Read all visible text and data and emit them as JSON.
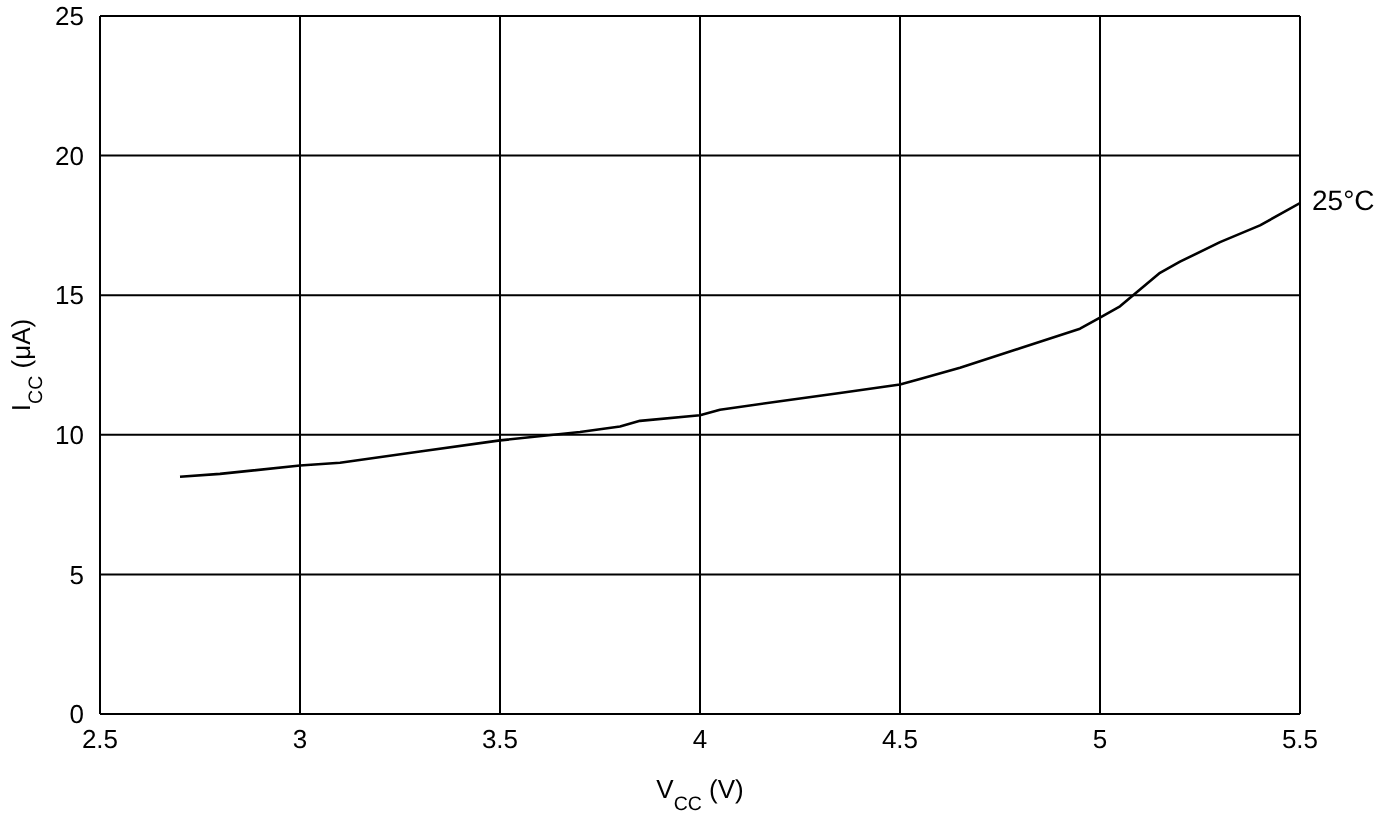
{
  "chart_data": {
    "type": "line",
    "xlabel": "V$_{CC}$ (V)",
    "ylabel": "I$_{CC}$ (μA)",
    "xlim": [
      2.5,
      5.5
    ],
    "xticks": [
      2.5,
      3,
      3.5,
      4,
      4.5,
      5,
      5.5
    ],
    "ylim": [
      0,
      25
    ],
    "yticks": [
      0,
      5,
      10,
      15,
      20,
      25
    ],
    "grid": true,
    "marker": "none",
    "line_style": "solid",
    "series": [
      {
        "name": "25°C",
        "color": "#000000",
        "x": [
          2.7,
          2.8,
          3.0,
          3.1,
          3.3,
          3.5,
          3.7,
          3.8,
          3.85,
          4.0,
          4.05,
          4.2,
          4.35,
          4.5,
          4.55,
          4.65,
          4.8,
          4.95,
          5.0,
          5.05,
          5.1,
          5.15,
          5.2,
          5.3,
          5.4,
          5.5
        ],
        "values": [
          8.5,
          8.6,
          8.9,
          9.0,
          9.4,
          9.8,
          10.1,
          10.3,
          10.5,
          10.7,
          10.9,
          11.2,
          11.5,
          11.8,
          12.0,
          12.4,
          13.1,
          13.8,
          14.2,
          14.6,
          15.2,
          15.8,
          16.2,
          16.9,
          17.5,
          18.3
        ]
      }
    ]
  }
}
